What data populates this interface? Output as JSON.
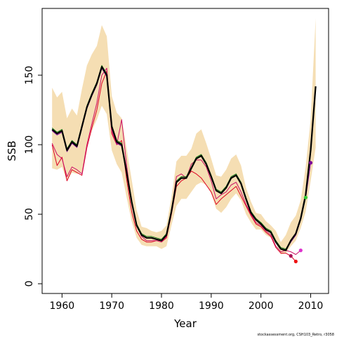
{
  "chart_data": {
    "type": "line",
    "title": "",
    "xlabel": "Year",
    "ylabel": "SSB",
    "xlim": [
      1956,
      2013.6
    ],
    "ylim": [
      -7,
      198
    ],
    "xticks": [
      1960,
      1970,
      1980,
      1990,
      2000,
      2010
    ],
    "yticks": [
      0,
      50,
      100,
      150
    ],
    "grid": false,
    "legend": "none",
    "footnote": "stockassessment.org, CSH103_Retro, r3058",
    "confidence_band": {
      "color": "#f5deb3",
      "x": [
        1958,
        1959,
        1960,
        1961,
        1962,
        1963,
        1964,
        1965,
        1966,
        1967,
        1968,
        1969,
        1970,
        1971,
        1972,
        1973,
        1974,
        1975,
        1976,
        1977,
        1978,
        1979,
        1980,
        1981,
        1982,
        1983,
        1984,
        1985,
        1986,
        1987,
        1988,
        1989,
        1990,
        1991,
        1992,
        1993,
        1994,
        1995,
        1996,
        1997,
        1998,
        1999,
        2000,
        2001,
        2002,
        2003,
        2004,
        2005,
        2006,
        2007,
        2008,
        2009,
        2010,
        2011
      ],
      "upper": [
        141,
        134,
        138,
        119,
        126,
        121,
        140,
        157,
        165,
        171,
        186,
        178,
        135,
        123,
        119,
        97,
        75,
        53,
        41,
        40,
        38,
        37,
        38,
        42,
        62,
        88,
        92,
        92,
        97,
        108,
        111,
        101,
        90,
        78,
        77,
        82,
        90,
        93,
        85,
        69,
        59,
        51,
        50,
        45,
        42,
        38,
        30,
        35,
        44,
        49,
        60,
        84,
        118,
        191
      ],
      "lower": [
        83,
        82,
        84,
        74,
        80,
        79,
        80,
        100,
        110,
        118,
        128,
        122,
        96,
        86,
        80,
        62,
        45,
        33,
        28,
        27,
        27,
        27,
        25,
        27,
        42,
        56,
        61,
        61,
        66,
        71,
        73,
        71,
        65,
        54,
        51,
        55,
        61,
        65,
        60,
        50,
        44,
        39,
        39,
        35,
        33,
        29,
        21,
        22,
        27,
        31,
        40,
        52,
        74,
        98
      ]
    },
    "series": [
      {
        "color": "#000000",
        "x": [
          1958,
          1959,
          1960,
          1961,
          1962,
          1963,
          1964,
          1965,
          1966,
          1967,
          1968,
          1969,
          1970,
          1971,
          1972,
          1973,
          1974,
          1975,
          1976,
          1977,
          1978,
          1979,
          1980,
          1981,
          1982,
          1983,
          1984,
          1985,
          1986,
          1987,
          1988,
          1989,
          1990,
          1991,
          1992,
          1993,
          1994,
          1995,
          1996,
          1997,
          1998,
          1999,
          2000,
          2001,
          2002,
          2003,
          2004,
          2005,
          2006,
          2007,
          2008,
          2009,
          2010,
          2011
        ],
        "y": [
          111,
          108,
          110,
          96,
          102,
          99,
          113,
          127,
          136,
          144,
          156,
          150,
          113,
          102,
          100,
          80,
          59,
          42,
          35,
          33,
          33,
          32,
          31,
          35,
          52,
          73,
          76,
          76,
          83,
          90,
          92,
          86,
          77,
          67,
          65,
          69,
          76,
          78,
          72,
          61,
          51,
          46,
          43,
          39,
          37,
          30,
          25,
          24,
          31,
          36,
          47,
          64,
          96,
          142
        ]
      },
      {
        "color": "#1a7f1a",
        "x": [
          1958,
          1959,
          1960,
          1961,
          1962,
          1963,
          1964,
          1965,
          1966,
          1967,
          1968,
          1969,
          1970,
          1971,
          1972,
          1973,
          1974,
          1975,
          1976,
          1977,
          1978,
          1979,
          1980,
          1981,
          1982,
          1983,
          1984,
          1985,
          1986,
          1987,
          1988,
          1989,
          1990,
          1991,
          1992,
          1993,
          1994,
          1995,
          1996,
          1997,
          1998,
          1999,
          2000,
          2001,
          2002,
          2003,
          2004,
          2005,
          2006,
          2007,
          2008,
          2009
        ],
        "y": [
          112,
          109,
          111,
          97,
          103,
          100,
          114,
          128,
          137,
          145,
          157,
          151,
          114,
          103,
          101,
          81,
          60,
          43,
          36,
          34,
          34,
          33,
          32,
          36,
          53,
          74,
          77,
          77,
          84,
          91,
          93,
          87,
          78,
          68,
          66,
          70,
          77,
          79,
          73,
          62,
          52,
          47,
          44,
          40,
          38,
          31,
          26,
          25,
          31,
          36,
          46,
          62
        ]
      },
      {
        "color": "#7b0099",
        "x": [
          1958,
          1959,
          1960,
          1961,
          1962,
          1963,
          1964,
          1965,
          1966,
          1967,
          1968,
          1969,
          1970,
          1971,
          1972,
          1973,
          1974,
          1975,
          1976,
          1977,
          1978,
          1979,
          1980,
          1981,
          1982,
          1983,
          1984,
          1985,
          1986,
          1987,
          1988,
          1989,
          1990,
          1991,
          1992,
          1993,
          1994,
          1995,
          1996,
          1997,
          1998,
          1999,
          2000,
          2001,
          2002,
          2003,
          2004,
          2005,
          2006,
          2007,
          2008,
          2009,
          2010
        ],
        "y": [
          110,
          107,
          109,
          95,
          101,
          98,
          112,
          126,
          135,
          143,
          155,
          149,
          112,
          101,
          99,
          79,
          58,
          42,
          35,
          33,
          33,
          32,
          31,
          35,
          52,
          73,
          76,
          76,
          83,
          90,
          92,
          86,
          77,
          67,
          65,
          69,
          76,
          78,
          72,
          61,
          51,
          46,
          43,
          39,
          37,
          30,
          25,
          24,
          30,
          35,
          46,
          62,
          87
        ]
      },
      {
        "color": "#cc1166",
        "x": [
          1958,
          1959,
          1960,
          1961,
          1962,
          1963,
          1964,
          1965,
          1966,
          1967,
          1968,
          1969,
          1970,
          1971,
          1972,
          1973,
          1974,
          1975,
          1976,
          1977,
          1978,
          1979,
          1980,
          1981,
          1982,
          1983,
          1984,
          1985,
          1986,
          1987,
          1988,
          1989,
          1990,
          1991,
          1992,
          1993,
          1994,
          1995,
          1996,
          1997,
          1998,
          1999,
          2000,
          2001,
          2002,
          2003,
          2004,
          2005,
          2006,
          2007,
          2008
        ],
        "y": [
          101,
          93,
          90,
          77,
          84,
          82,
          79,
          100,
          115,
          130,
          150,
          155,
          110,
          100,
          118,
          85,
          58,
          42,
          34,
          31,
          31,
          31,
          30,
          34,
          52,
          77,
          79,
          76,
          86,
          89,
          89,
          84,
          74,
          61,
          64,
          66,
          71,
          73,
          66,
          57,
          50,
          44,
          42,
          38,
          35,
          27,
          23,
          24,
          23,
          21,
          24
        ]
      },
      {
        "color": "#dd0022",
        "x": [
          1958,
          1959,
          1960,
          1961,
          1962,
          1963,
          1964,
          1965,
          1966,
          1967,
          1968,
          1969,
          1970,
          1971,
          1972,
          1973,
          1974,
          1975,
          1976,
          1977,
          1978,
          1979,
          1980,
          1981,
          1982,
          1983,
          1984,
          1985,
          1986,
          1987,
          1988,
          1989,
          1990,
          1991,
          1992,
          1993,
          1994,
          1995,
          1996,
          1997,
          1998,
          1999,
          2000,
          2001,
          2002,
          2003,
          2004,
          2005,
          2006,
          2007
        ],
        "y": [
          100,
          85,
          91,
          74,
          82,
          80,
          78,
          98,
          112,
          125,
          144,
          153,
          108,
          100,
          103,
          75,
          52,
          38,
          32,
          30,
          30,
          31,
          30,
          33,
          50,
          70,
          74,
          76,
          81,
          79,
          76,
          71,
          66,
          57,
          61,
          64,
          67,
          70,
          63,
          56,
          49,
          43,
          41,
          37,
          34,
          26,
          22,
          22,
          20,
          16
        ]
      }
    ],
    "endpoints": [
      {
        "x": 2009,
        "y": 62,
        "color": "#33cc33"
      },
      {
        "x": 2010,
        "y": 87,
        "color": "#7b0099"
      },
      {
        "x": 2008,
        "y": 24,
        "color": "#dd33cc"
      },
      {
        "x": 2006,
        "y": 20,
        "color": "#aa1155"
      },
      {
        "x": 2007,
        "y": 16,
        "color": "#ee1111"
      }
    ]
  }
}
